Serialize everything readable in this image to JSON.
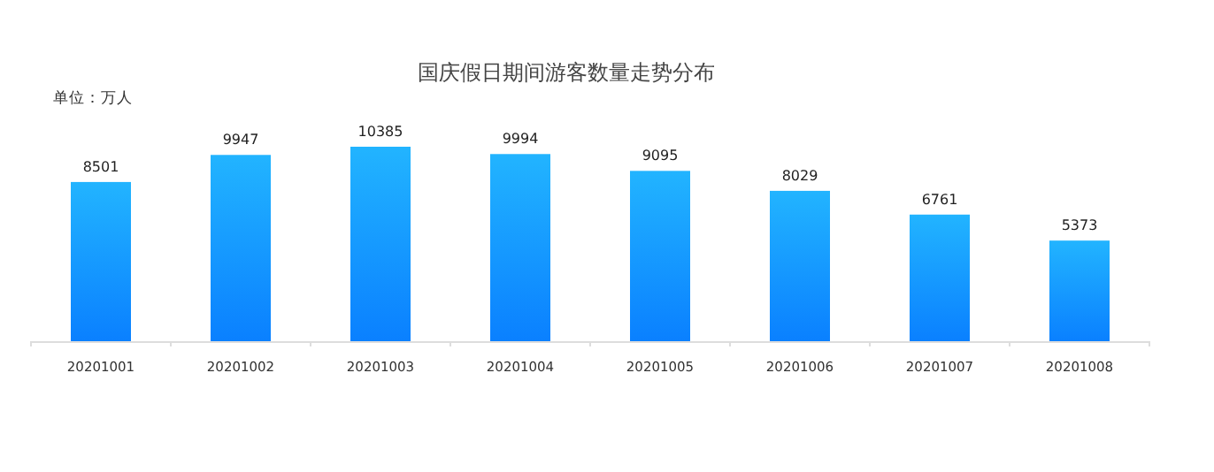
{
  "chart_data": {
    "type": "bar",
    "title": "国庆假日期间游客数量走势分布",
    "annotations": [
      "单位：万人"
    ],
    "categories": [
      "20201001",
      "20201002",
      "20201003",
      "20201004",
      "20201005",
      "20201006",
      "20201007",
      "20201008"
    ],
    "series": [
      {
        "color": "#22b4ff",
        "values": [
          8501,
          9947,
          10385,
          9994,
          9095,
          8029,
          6761,
          5373
        ]
      }
    ],
    "data_labels": true
  }
}
